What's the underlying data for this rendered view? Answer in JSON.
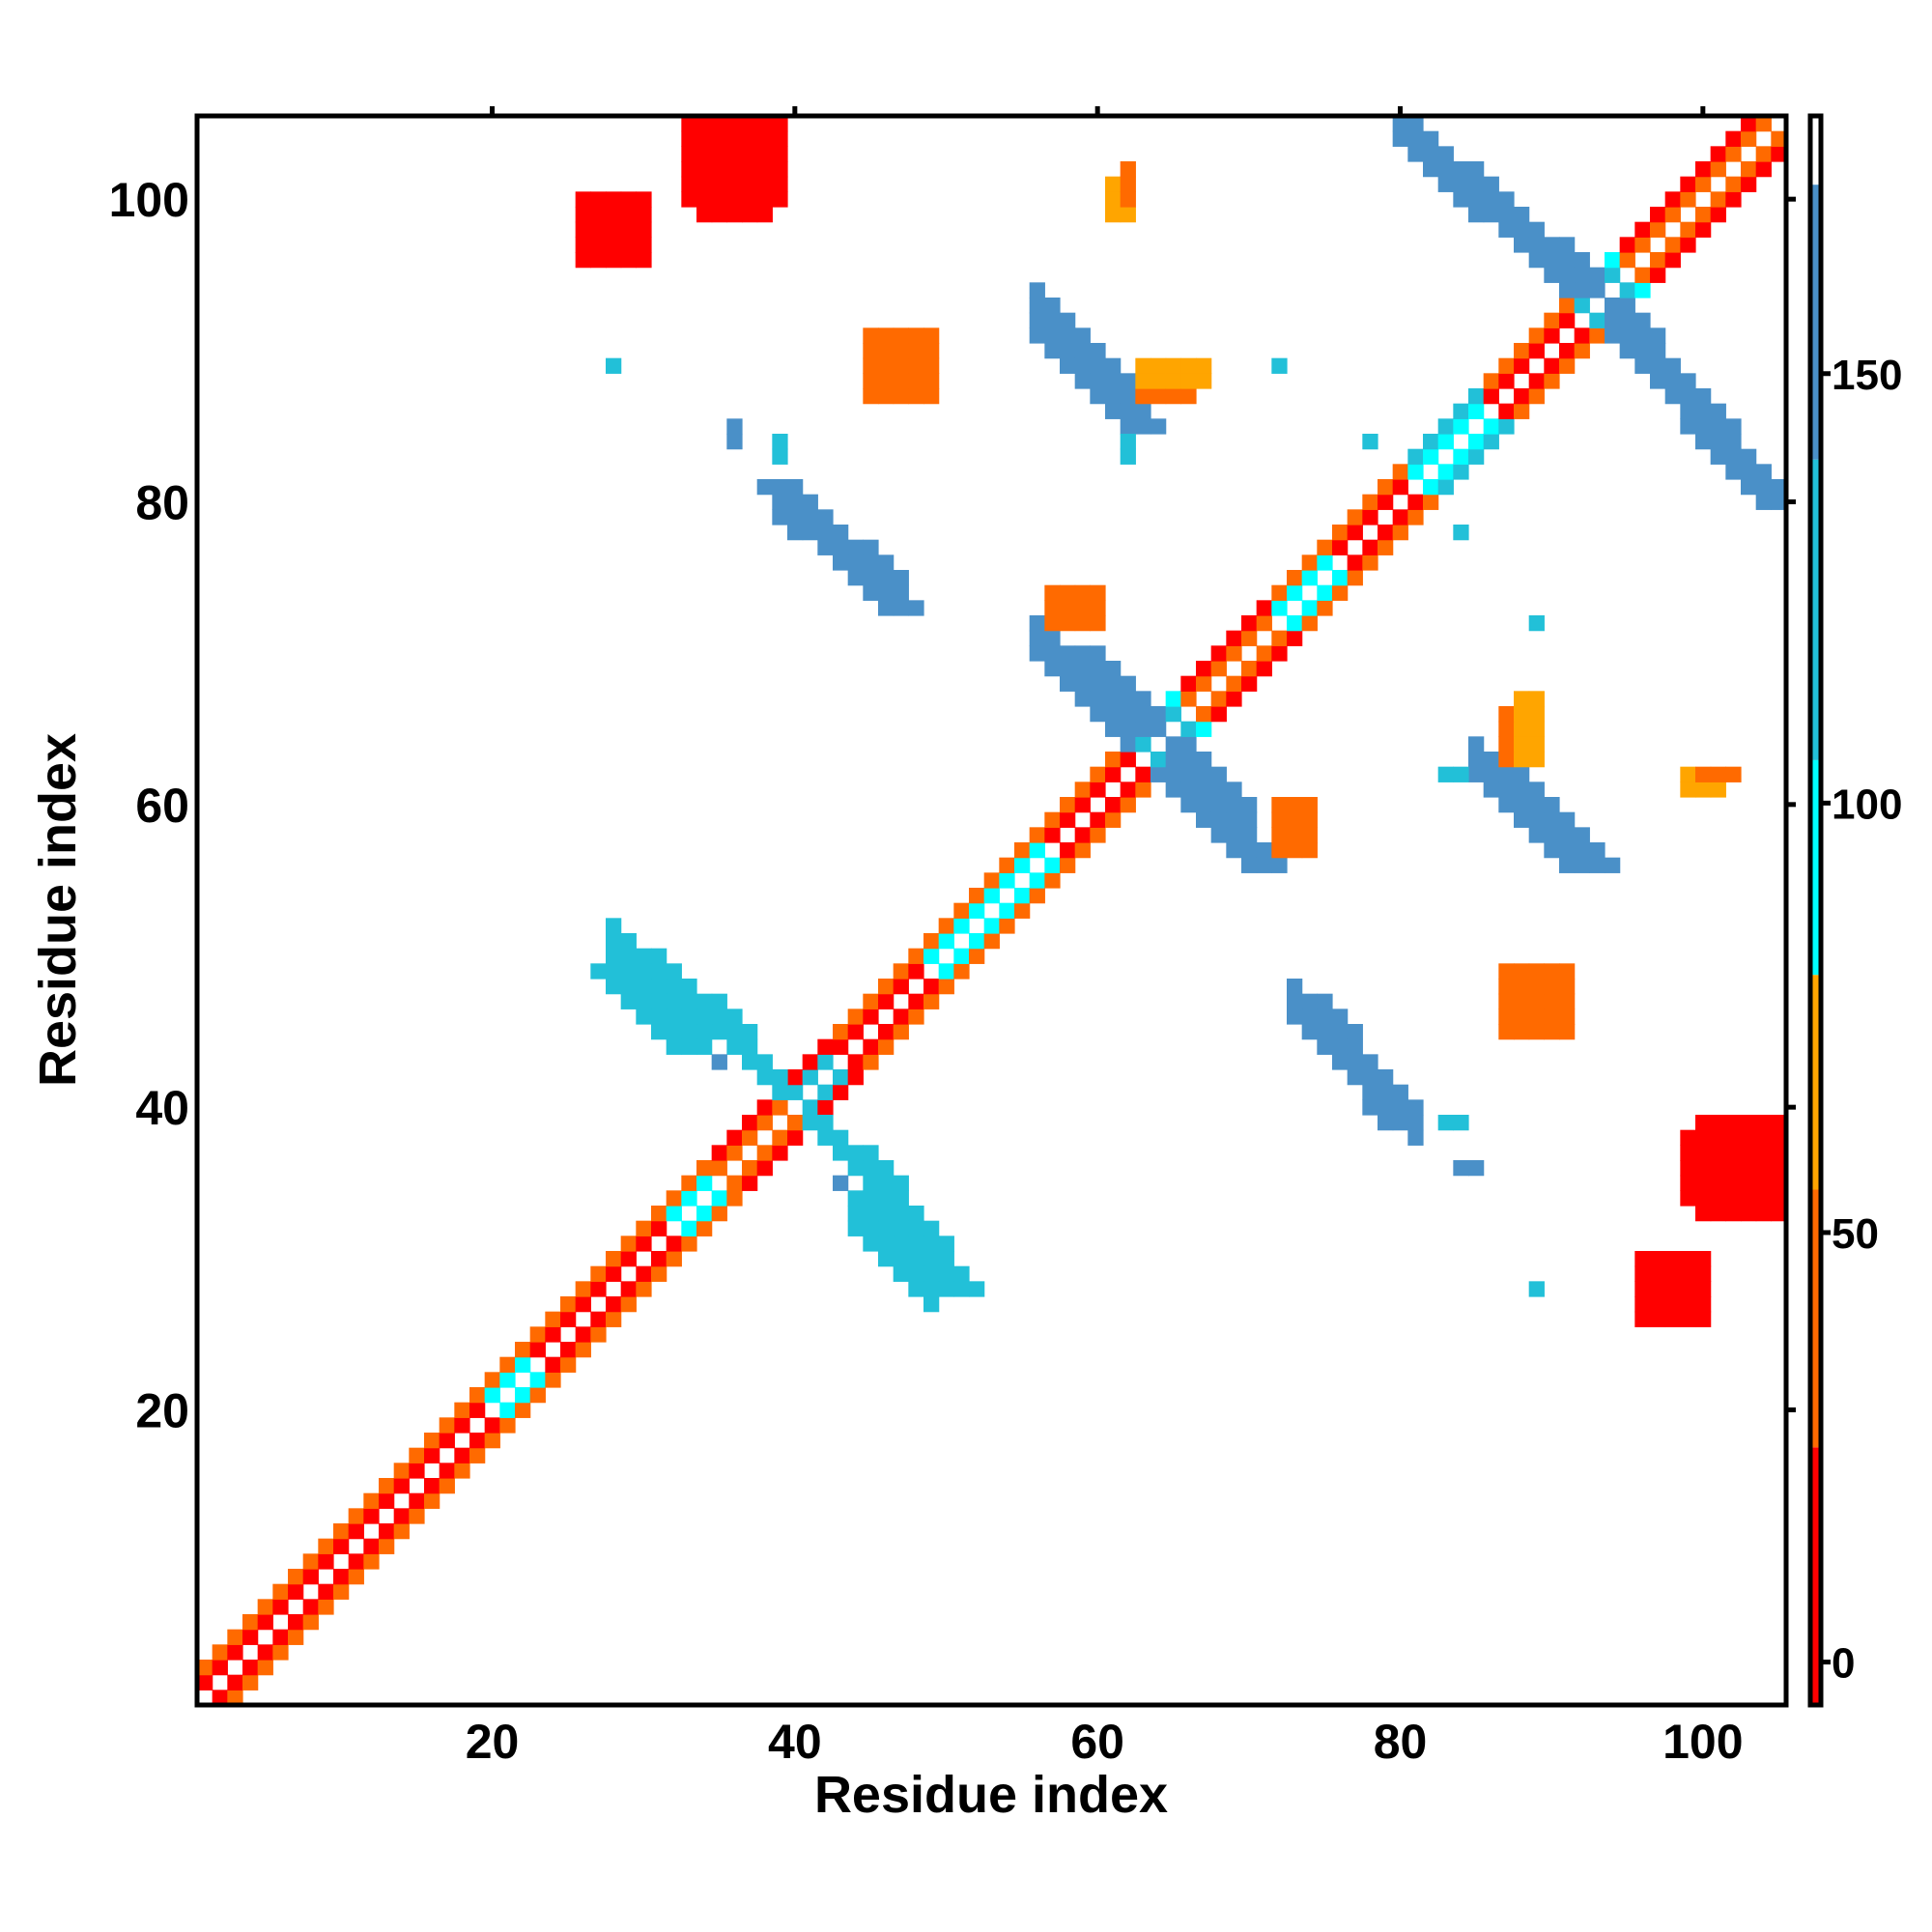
{
  "chart_data": {
    "type": "heatmap",
    "title": "",
    "xlabel": "Residue index",
    "ylabel": "Residue index",
    "xlim": [
      1,
      105
    ],
    "ylim": [
      1,
      105
    ],
    "x_ticks": [
      20,
      40,
      60,
      80,
      100
    ],
    "y_ticks": [
      20,
      40,
      60,
      80,
      100
    ],
    "grid": false,
    "colorbar": {
      "range": [
        -5,
        180
      ],
      "ticks": [
        0,
        50,
        100,
        150
      ],
      "stops": [
        {
          "from": -5,
          "to": 25,
          "color": "#ff0000"
        },
        {
          "from": 25,
          "to": 55,
          "color": "#ff6a00"
        },
        {
          "from": 55,
          "to": 80,
          "color": "#ffa500"
        },
        {
          "from": 80,
          "to": 105,
          "color": "#00ffff"
        },
        {
          "from": 105,
          "to": 140,
          "color": "#22c0d8"
        },
        {
          "from": 140,
          "to": 172,
          "color": "#4a90c8"
        },
        {
          "from": 172,
          "to": 180,
          "color": "#ffffff"
        }
      ]
    },
    "diagonal": [
      {
        "from": 1,
        "to": 19,
        "values": [
          10,
          40
        ]
      },
      {
        "from": 20,
        "to": 22,
        "values": [
          95,
          40
        ]
      },
      {
        "from": 23,
        "to": 31,
        "values": [
          10,
          40
        ]
      },
      {
        "from": 32,
        "to": 34,
        "values": [
          95,
          40
        ]
      },
      {
        "from": 35,
        "to": 39,
        "values": [
          40,
          10
        ]
      },
      {
        "from": 40,
        "to": 42,
        "values": [
          120,
          10
        ]
      },
      {
        "from": 43,
        "to": 48,
        "values": [
          10,
          40
        ]
      },
      {
        "from": 49,
        "to": 56,
        "values": [
          95,
          40
        ]
      },
      {
        "from": 57,
        "to": 62,
        "values": [
          10,
          40
        ]
      },
      {
        "from": 63,
        "to": 65,
        "values": [
          120,
          95
        ]
      },
      {
        "from": 66,
        "to": 71,
        "values": [
          40,
          10
        ]
      },
      {
        "from": 72,
        "to": 75,
        "values": [
          95,
          40
        ]
      },
      {
        "from": 76,
        "to": 80,
        "values": [
          10,
          40
        ]
      },
      {
        "from": 81,
        "to": 85,
        "values": [
          95,
          120
        ]
      },
      {
        "from": 86,
        "to": 91,
        "values": [
          10,
          40
        ]
      },
      {
        "from": 92,
        "to": 94,
        "values": [
          120,
          95
        ]
      },
      {
        "from": 95,
        "to": 105,
        "values": [
          40,
          10
        ]
      }
    ],
    "bands": [
      {
        "from": [
          41,
          39
        ],
        "to": [
          48,
          32
        ],
        "width": 2,
        "value": 135
      },
      {
        "from": [
          43,
          37
        ],
        "to": [
          50,
          28
        ],
        "width": 3,
        "value": 130
      },
      {
        "from": [
          27,
          49
        ],
        "to": [
          32,
          44
        ],
        "width": 3,
        "value": 130
      },
      {
        "from": [
          64,
          62
        ],
        "to": [
          70,
          56
        ],
        "width": 3,
        "value": 140
      },
      {
        "from": [
          58,
          70
        ],
        "to": [
          64,
          64
        ],
        "width": 3,
        "value": 140
      },
      {
        "from": [
          73,
          47
        ],
        "to": [
          79,
          39
        ],
        "width": 3,
        "value": 150
      },
      {
        "from": [
          38,
          81
        ],
        "to": [
          46,
          73
        ],
        "width": 3,
        "value": 150
      },
      {
        "from": [
          56,
          91
        ],
        "to": [
          62,
          85
        ],
        "width": 3,
        "value": 150
      },
      {
        "from": [
          86,
          62
        ],
        "to": [
          92,
          56
        ],
        "width": 3,
        "value": 150
      },
      {
        "from": [
          80,
          104
        ],
        "to": [
          92,
          94
        ],
        "width": 3,
        "value": 150
      },
      {
        "from": [
          94,
          91
        ],
        "to": [
          104,
          80
        ],
        "width": 3,
        "value": 150
      }
    ],
    "patches": [
      {
        "x": [
          34,
          38
        ],
        "y": [
          99,
          105
        ],
        "value": 10
      },
      {
        "x": [
          26,
          29
        ],
        "y": [
          96,
          99
        ],
        "value": 20
      },
      {
        "x": [
          61,
          62
        ],
        "y": [
          99,
          101
        ],
        "value": 60
      },
      {
        "x": [
          45,
          49
        ],
        "y": [
          87,
          91
        ],
        "value": 30
      },
      {
        "x": [
          63,
          66
        ],
        "y": [
          87,
          88
        ],
        "value": 50
      },
      {
        "x": [
          57,
          60
        ],
        "y": [
          72,
          74
        ],
        "value": 20
      },
      {
        "x": [
          88,
          89
        ],
        "y": [
          63,
          67
        ],
        "value": 60
      },
      {
        "x": [
          72,
          74
        ],
        "y": [
          57,
          60
        ],
        "value": 30
      },
      {
        "x": [
          88,
          91
        ],
        "y": [
          45,
          49
        ],
        "value": 25
      },
      {
        "x": [
          100,
          105
        ],
        "y": [
          33,
          39
        ],
        "value": 15
      },
      {
        "x": [
          96,
          100
        ],
        "y": [
          26,
          30
        ],
        "value": 10
      },
      {
        "x": [
          100,
          102
        ],
        "y": [
          62,
          62
        ],
        "value": 45
      }
    ],
    "points": [
      {
        "x": 28,
        "y": 89,
        "value": 130
      },
      {
        "x": 36,
        "y": 84,
        "value": 150
      },
      {
        "x": 39,
        "y": 83,
        "value": 130
      },
      {
        "x": 62,
        "y": 84,
        "value": 130
      },
      {
        "x": 72,
        "y": 89,
        "value": 130
      },
      {
        "x": 84,
        "y": 78,
        "value": 130
      },
      {
        "x": 89,
        "y": 72,
        "value": 130
      },
      {
        "x": 83,
        "y": 62,
        "value": 130
      },
      {
        "x": 84,
        "y": 39,
        "value": 130
      },
      {
        "x": 85,
        "y": 36,
        "value": 150
      },
      {
        "x": 43,
        "y": 35,
        "value": 150
      },
      {
        "x": 89,
        "y": 28,
        "value": 130
      }
    ]
  }
}
